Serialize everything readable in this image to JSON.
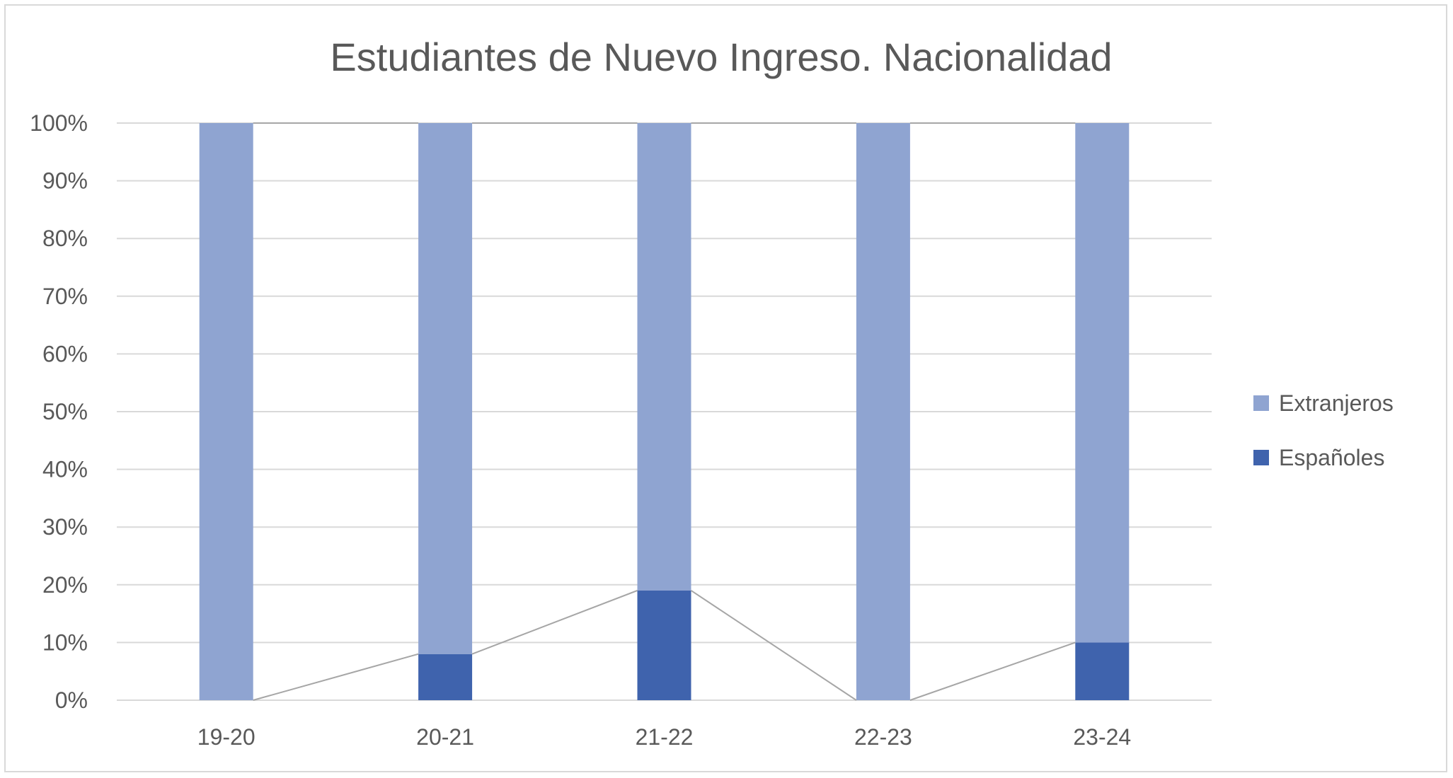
{
  "chart_data": {
    "type": "bar",
    "stacked": true,
    "title": "Estudiantes de Nuevo Ingreso. Nacionalidad",
    "xlabel": "",
    "ylabel": "",
    "categories": [
      "19-20",
      "20-21",
      "21-22",
      "22-23",
      "23-24"
    ],
    "series": [
      {
        "name": "Españoles",
        "values": [
          0,
          8,
          19,
          0,
          10
        ],
        "color": "#3f63ad"
      },
      {
        "name": "Extranjeros",
        "values": [
          100,
          92,
          81,
          100,
          90
        ],
        "color": "#8fa4d1"
      }
    ],
    "ylim": [
      0,
      100
    ],
    "yticks": [
      "0%",
      "10%",
      "20%",
      "30%",
      "40%",
      "50%",
      "60%",
      "70%",
      "80%",
      "90%",
      "100%"
    ],
    "grid": true,
    "legend": "right",
    "legend_order": [
      "Extranjeros",
      "Españoles"
    ],
    "series_lines": true,
    "colors": {
      "gridline": "#d9d9d9",
      "series_line": "#a6a6a6",
      "text": "#595959",
      "border": "#d9d9d9"
    }
  }
}
